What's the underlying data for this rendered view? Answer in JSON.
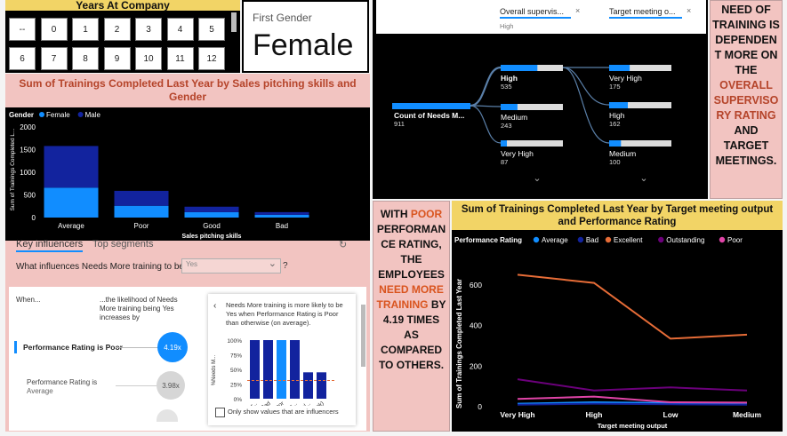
{
  "years_slicer": {
    "title": "Years At Company",
    "row1": [
      "--",
      "0",
      "1",
      "2",
      "3",
      "4",
      "5"
    ],
    "row2": [
      "6",
      "7",
      "8",
      "9",
      "10",
      "11",
      "12"
    ]
  },
  "gender_card": {
    "label": "First Gender",
    "value": "Female"
  },
  "bar_title": "Sum of Trainings Completed Last Year by Sales pitching skills and Gender",
  "tree": {
    "chip1": "Overall supervis...",
    "chip1_sub": "High",
    "chip2": "Target meeting o...",
    "root_label": "Count of Needs M...",
    "root_value": "911",
    "level1": [
      {
        "label": "High",
        "value": "535",
        "fill": 0.59
      },
      {
        "label": "Medium",
        "value": "243",
        "fill": 0.27
      },
      {
        "label": "Very High",
        "value": "87",
        "fill": 0.1
      }
    ],
    "level2": [
      {
        "label": "Very High",
        "value": "175",
        "fill": 0.33
      },
      {
        "label": "High",
        "value": "162",
        "fill": 0.3
      },
      {
        "label": "Medium",
        "value": "100",
        "fill": 0.19
      }
    ]
  },
  "note1": {
    "parts": [
      {
        "text": "NEED OF TRAINING IS DEPENDEN T MORE ON THE ",
        "color": "#111111"
      },
      {
        "text": "OVERALL SUPERVISO RY RATING",
        "color": "#b5442a"
      },
      {
        "text": " AND TARGET MEETINGS.",
        "color": "#111111"
      }
    ]
  },
  "note2": {
    "parts": [
      {
        "text": "WITH ",
        "color": "#111111"
      },
      {
        "text": "POOR",
        "color": "#d9541e"
      },
      {
        "text": " PERFORMAN CE RATING, THE EMPLOYEES ",
        "color": "#111111"
      },
      {
        "text": "NEED MORE TRAINING",
        "color": "#d9541e"
      },
      {
        "text": " BY 4.19 TIMES AS COMPARED TO OTHERS.",
        "color": "#111111"
      }
    ]
  },
  "influencers": {
    "tab1": "Key influencers",
    "tab2": "Top segments",
    "question": "What influences Needs More training to be",
    "dropdown_value": "Yes",
    "help": "?",
    "col_when": "When...",
    "col_likelihood": "...the likelihood of Needs More training being Yes increases by",
    "row1_label": "Performance Rating is Poor",
    "row1_value": "4.19x",
    "row2_label": "Performance Rating is",
    "row2_sub": "Average",
    "row2_value": "3.98x",
    "detail_text": "Needs More training is more likely to be Yes when Performance Rating is Poor than otherwise (on average).",
    "mini_ylabel": "%Needs M...",
    "mini_ticks": [
      "100%",
      "75%",
      "50%",
      "25%",
      "0%"
    ],
    "checkbox_label": "Only show values that are influencers"
  },
  "line_title": "Sum of Trainings Completed Last Year by Target meeting output and Performance Rating",
  "colors": {
    "female": "#118dff",
    "male": "#12239e",
    "excellent": "#e66c37",
    "outstanding": "#6b007b",
    "poor": "#e044a7",
    "panel_pink": "#f2c4c1",
    "yellow": "#f2d466"
  },
  "chart_data": [
    {
      "type": "bar",
      "title": "Sum of Trainings Completed Last Year by Sales pitching skills and Gender",
      "legend_title": "Gender",
      "xlabel": "Sales pitching skills",
      "ylabel": "Sum of Trainings Completed L...",
      "categories": [
        "Average",
        "Poor",
        "Good",
        "Bad"
      ],
      "series": [
        {
          "name": "Female",
          "values": [
            660,
            260,
            120,
            60
          ]
        },
        {
          "name": "Male",
          "values": [
            920,
            330,
            120,
            60
          ]
        }
      ],
      "stacked": true,
      "yticks": [
        "0",
        "500",
        "1000",
        "1500",
        "2000"
      ],
      "ylim": [
        0,
        2000
      ],
      "legend": "top-left"
    },
    {
      "type": "bar",
      "title": "",
      "xlabel": "",
      "ylabel": "%Needs M...",
      "categories": [
        "Aver...",
        "Bad",
        "Poor",
        "Outs...",
        "Excel...",
        "(Blank)"
      ],
      "values": [
        100,
        100,
        100,
        100,
        45,
        45
      ],
      "ylim": [
        0,
        100
      ],
      "average_line": 31
    },
    {
      "type": "line",
      "title": "Sum of Trainings Completed Last Year by Target meeting output and Performance Rating",
      "legend_title": "Performance Rating",
      "xlabel": "Target meeting output",
      "ylabel": "Sum of Trainings Completed Last Year",
      "categories": [
        "Very High",
        "High",
        "Low",
        "Medium"
      ],
      "series": [
        {
          "name": "Average",
          "values": [
            15,
            22,
            18,
            12
          ]
        },
        {
          "name": "Bad",
          "values": [
            10,
            15,
            12,
            10
          ]
        },
        {
          "name": "Excellent",
          "values": [
            650,
            610,
            335,
            355
          ]
        },
        {
          "name": "Outstanding",
          "values": [
            135,
            80,
            95,
            80
          ]
        },
        {
          "name": "Poor",
          "values": [
            38,
            50,
            22,
            20
          ]
        }
      ],
      "yticks": [
        "0",
        "200",
        "400",
        "600"
      ],
      "ylim": [
        0,
        700
      ],
      "legend": "top-left"
    }
  ]
}
